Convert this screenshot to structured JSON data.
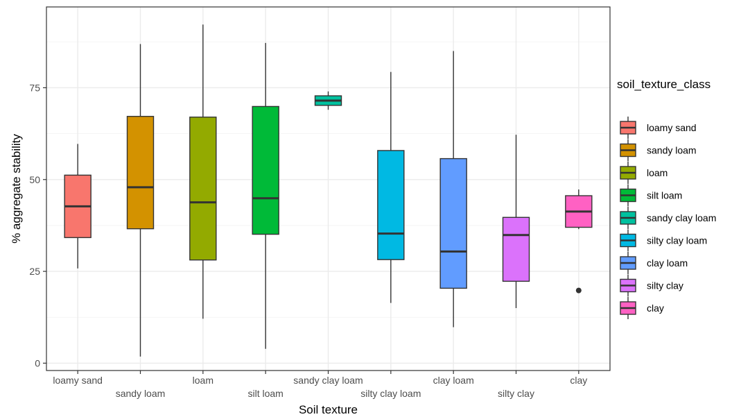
{
  "chart_data": {
    "type": "box",
    "title": "",
    "xlabel": "Soil texture",
    "ylabel": "% aggregate stability",
    "ylim": [
      -2,
      97
    ],
    "yticks": [
      0,
      25,
      50,
      75
    ],
    "grid": true,
    "legend": {
      "title": "soil_texture_class",
      "placement": "right"
    },
    "categories": [
      "loamy sand",
      "sandy loam",
      "loam",
      "silt loam",
      "sandy clay loam",
      "silty clay loam",
      "clay loam",
      "silty clay",
      "clay"
    ],
    "boxes": [
      {
        "category": "loamy sand",
        "color": "#F8766D",
        "whisker_low": 25.8,
        "q1": 34.2,
        "median": 42.7,
        "q3": 51.2,
        "whisker_high": 59.7,
        "outliers": []
      },
      {
        "category": "sandy loam",
        "color": "#D39200",
        "whisker_low": 1.8,
        "q1": 36.6,
        "median": 47.9,
        "q3": 67.2,
        "whisker_high": 86.9,
        "outliers": []
      },
      {
        "category": "loam",
        "color": "#93AA00",
        "whisker_low": 12.1,
        "q1": 28.1,
        "median": 43.8,
        "q3": 67.0,
        "whisker_high": 92.2,
        "outliers": []
      },
      {
        "category": "silt loam",
        "color": "#00BA38",
        "whisker_low": 3.9,
        "q1": 35.1,
        "median": 44.9,
        "q3": 69.9,
        "whisker_high": 87.2,
        "outliers": []
      },
      {
        "category": "sandy clay loam",
        "color": "#00C19F",
        "whisker_low": 69.0,
        "q1": 70.2,
        "median": 71.5,
        "q3": 72.8,
        "whisker_high": 74.0,
        "outliers": []
      },
      {
        "category": "silty clay loam",
        "color": "#00B9E3",
        "whisker_low": 16.4,
        "q1": 28.2,
        "median": 35.3,
        "q3": 57.9,
        "whisker_high": 79.3,
        "outliers": []
      },
      {
        "category": "clay loam",
        "color": "#619CFF",
        "whisker_low": 9.8,
        "q1": 20.4,
        "median": 30.4,
        "q3": 55.7,
        "whisker_high": 85.0,
        "outliers": []
      },
      {
        "category": "silty clay",
        "color": "#DB72FB",
        "whisker_low": 15.0,
        "q1": 22.3,
        "median": 34.9,
        "q3": 39.7,
        "whisker_high": 62.2,
        "outliers": []
      },
      {
        "category": "clay",
        "color": "#FF61C3",
        "whisker_low": 36.5,
        "q1": 37.0,
        "median": 41.3,
        "q3": 45.6,
        "whisker_high": 47.3,
        "outliers": [
          19.8
        ]
      }
    ]
  }
}
